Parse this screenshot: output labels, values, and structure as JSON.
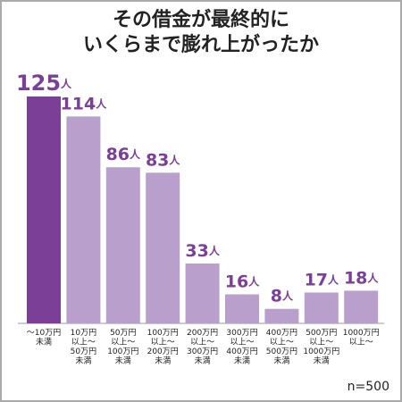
{
  "chart_data": {
    "type": "bar",
    "title": [
      "その借金が最終的に",
      "いくらまで膨れ上がったか"
    ],
    "categories": [
      "〜10万円\n未満",
      "10万円\n以上〜\n50万円\n未満",
      "50万円\n以上〜\n100万円\n未満",
      "100万円\n以上〜\n200万円\n未満",
      "200万円\n以上〜\n300万円\n未満",
      "300万円\n以上〜\n400万円\n未満",
      "400万円\n以上〜\n500万円\n未満",
      "500万円\n以上〜\n1000万円\n未満",
      "1000万円\n以上〜"
    ],
    "values": [
      125,
      114,
      86,
      83,
      33,
      16,
      8,
      17,
      18
    ],
    "value_labels": [
      "125人",
      "114人",
      "86人",
      "83人",
      "33人",
      "16人",
      "8人",
      "17人",
      "18人"
    ],
    "colors": [
      "#7b3f98",
      "#b9a0cc",
      "#b9a0cc",
      "#b9a0cc",
      "#b9a0cc",
      "#b9a0cc",
      "#b9a0cc",
      "#b9a0cc",
      "#b9a0cc"
    ],
    "label_color": "#7b3f98",
    "ylim": [
      0,
      125
    ],
    "annotation": "n=500"
  }
}
